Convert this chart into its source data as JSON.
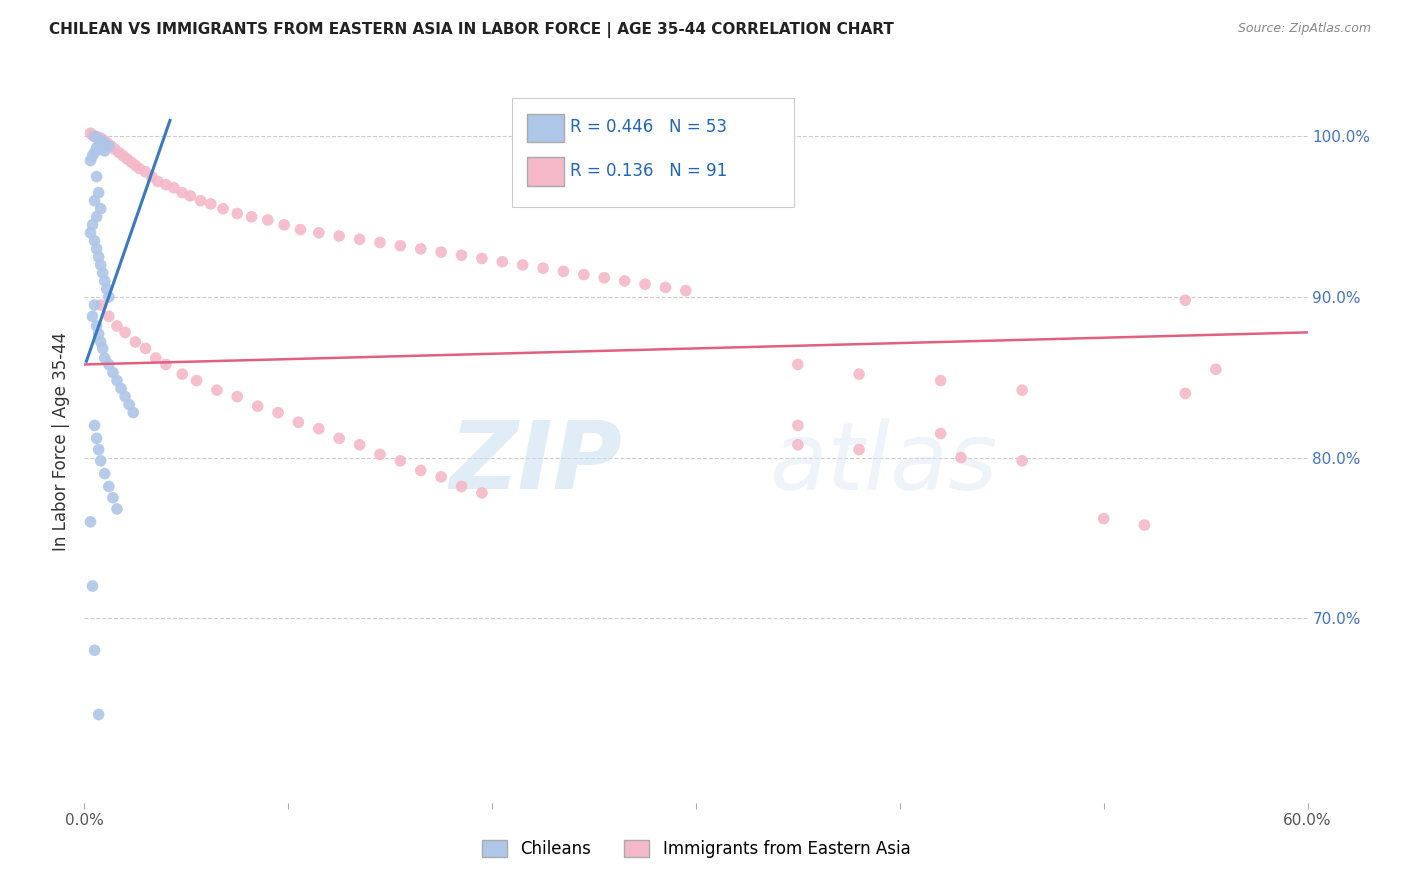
{
  "title": "CHILEAN VS IMMIGRANTS FROM EASTERN ASIA IN LABOR FORCE | AGE 35-44 CORRELATION CHART",
  "source": "Source: ZipAtlas.com",
  "ylabel": "In Labor Force | Age 35-44",
  "xlim": [
    0.0,
    0.6
  ],
  "ylim": [
    0.585,
    1.035
  ],
  "xticks": [
    0.0,
    0.1,
    0.2,
    0.3,
    0.4,
    0.5,
    0.6
  ],
  "xtick_labels": [
    "0.0%",
    "",
    "",
    "",
    "",
    "",
    "60.0%"
  ],
  "ytick_labels_right": [
    "100.0%",
    "90.0%",
    "80.0%",
    "70.0%"
  ],
  "yticks_right": [
    1.0,
    0.9,
    0.8,
    0.7
  ],
  "blue_R": "0.446",
  "blue_N": "53",
  "pink_R": "0.136",
  "pink_N": "91",
  "blue_color": "#aec6e8",
  "pink_color": "#f4b8c8",
  "blue_line_color": "#3a7abf",
  "pink_line_color": "#e06080",
  "watermark_zip": "ZIP",
  "watermark_atlas": "atlas",
  "legend_chileans": "Chileans",
  "legend_immigrants": "Immigrants from Eastern Asia",
  "blue_scatter_x": [
    0.005,
    0.007,
    0.009,
    0.008,
    0.01,
    0.012,
    0.006,
    0.008,
    0.01,
    0.005,
    0.004,
    0.003,
    0.006,
    0.007,
    0.005,
    0.008,
    0.006,
    0.004,
    0.003,
    0.005,
    0.006,
    0.007,
    0.008,
    0.009,
    0.01,
    0.011,
    0.012,
    0.005,
    0.004,
    0.006,
    0.007,
    0.008,
    0.009,
    0.01,
    0.012,
    0.014,
    0.016,
    0.018,
    0.02,
    0.022,
    0.024,
    0.005,
    0.006,
    0.007,
    0.008,
    0.01,
    0.012,
    0.014,
    0.016,
    0.003,
    0.004,
    0.005,
    0.007
  ],
  "blue_scatter_y": [
    1.0,
    0.998,
    0.997,
    0.996,
    0.995,
    0.994,
    0.993,
    0.992,
    0.991,
    0.99,
    0.988,
    0.985,
    0.975,
    0.965,
    0.96,
    0.955,
    0.95,
    0.945,
    0.94,
    0.935,
    0.93,
    0.925,
    0.92,
    0.915,
    0.91,
    0.905,
    0.9,
    0.895,
    0.888,
    0.882,
    0.877,
    0.872,
    0.868,
    0.862,
    0.858,
    0.853,
    0.848,
    0.843,
    0.838,
    0.833,
    0.828,
    0.82,
    0.812,
    0.805,
    0.798,
    0.79,
    0.782,
    0.775,
    0.768,
    0.76,
    0.72,
    0.68,
    0.64
  ],
  "pink_scatter_x": [
    0.003,
    0.004,
    0.005,
    0.006,
    0.007,
    0.008,
    0.009,
    0.01,
    0.011,
    0.012,
    0.013,
    0.015,
    0.017,
    0.019,
    0.021,
    0.023,
    0.025,
    0.027,
    0.03,
    0.033,
    0.036,
    0.04,
    0.044,
    0.048,
    0.052,
    0.057,
    0.062,
    0.068,
    0.075,
    0.082,
    0.09,
    0.098,
    0.106,
    0.115,
    0.125,
    0.135,
    0.145,
    0.155,
    0.165,
    0.175,
    0.185,
    0.195,
    0.205,
    0.215,
    0.225,
    0.235,
    0.245,
    0.255,
    0.265,
    0.275,
    0.285,
    0.295,
    0.008,
    0.012,
    0.016,
    0.02,
    0.025,
    0.03,
    0.035,
    0.04,
    0.048,
    0.055,
    0.065,
    0.075,
    0.085,
    0.095,
    0.105,
    0.115,
    0.125,
    0.135,
    0.145,
    0.155,
    0.165,
    0.175,
    0.185,
    0.195,
    0.35,
    0.38,
    0.42,
    0.46,
    0.35,
    0.42,
    0.35,
    0.38,
    0.43,
    0.46,
    0.5,
    0.52,
    0.54,
    0.555,
    0.54
  ],
  "pink_scatter_y": [
    1.002,
    1.001,
    1.0,
    1.0,
    0.999,
    0.999,
    0.998,
    0.997,
    0.996,
    0.995,
    0.994,
    0.992,
    0.99,
    0.988,
    0.986,
    0.984,
    0.982,
    0.98,
    0.978,
    0.975,
    0.972,
    0.97,
    0.968,
    0.965,
    0.963,
    0.96,
    0.958,
    0.955,
    0.952,
    0.95,
    0.948,
    0.945,
    0.942,
    0.94,
    0.938,
    0.936,
    0.934,
    0.932,
    0.93,
    0.928,
    0.926,
    0.924,
    0.922,
    0.92,
    0.918,
    0.916,
    0.914,
    0.912,
    0.91,
    0.908,
    0.906,
    0.904,
    0.895,
    0.888,
    0.882,
    0.878,
    0.872,
    0.868,
    0.862,
    0.858,
    0.852,
    0.848,
    0.842,
    0.838,
    0.832,
    0.828,
    0.822,
    0.818,
    0.812,
    0.808,
    0.802,
    0.798,
    0.792,
    0.788,
    0.782,
    0.778,
    0.858,
    0.852,
    0.848,
    0.842,
    0.82,
    0.815,
    0.808,
    0.805,
    0.8,
    0.798,
    0.762,
    0.758,
    0.898,
    0.855,
    0.84
  ],
  "blue_trend_x": [
    0.001,
    0.042
  ],
  "blue_trend_y": [
    0.86,
    1.01
  ],
  "pink_trend_x": [
    0.0,
    0.6
  ],
  "pink_trend_y": [
    0.858,
    0.878
  ]
}
